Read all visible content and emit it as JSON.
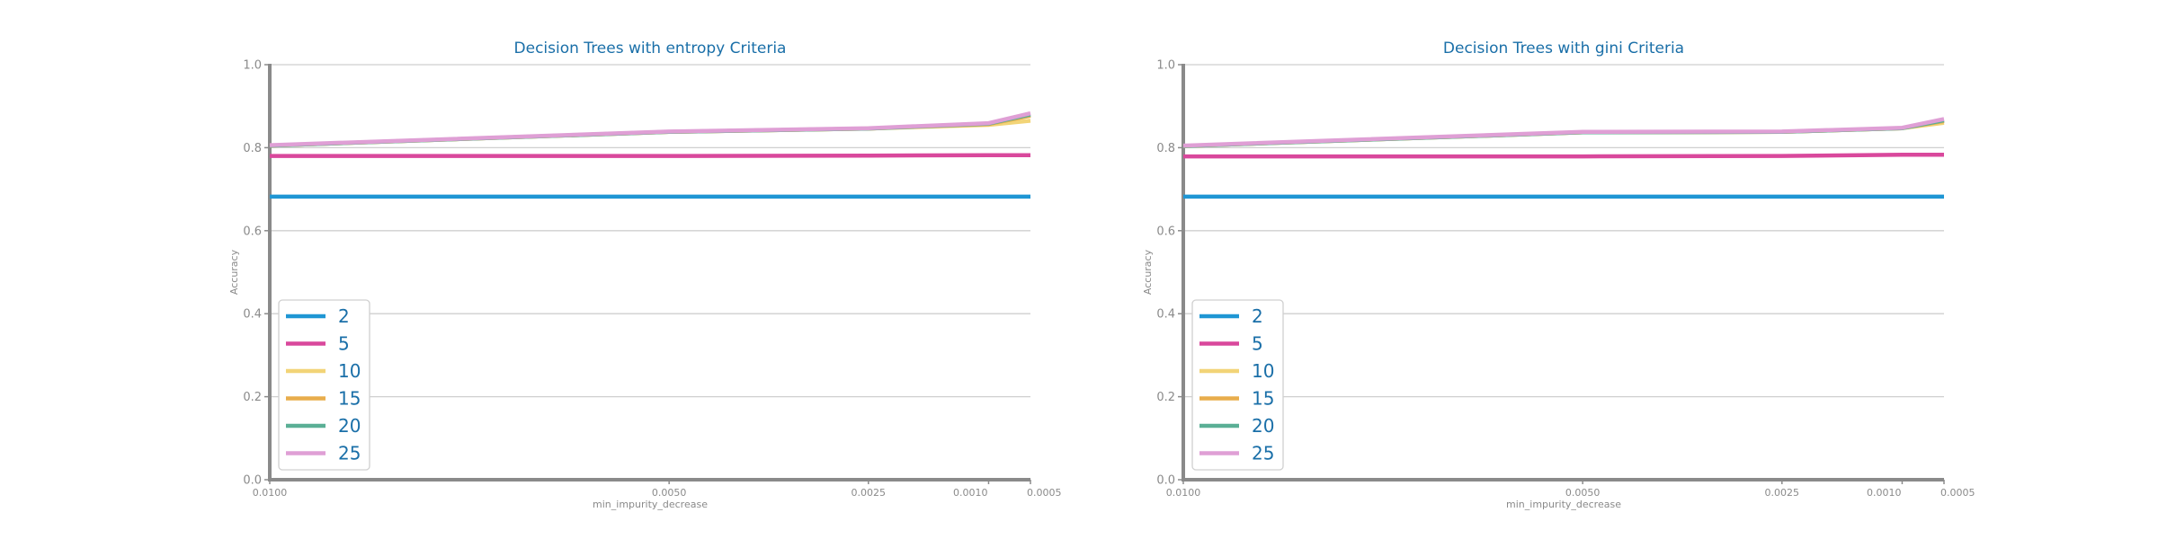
{
  "chart_data": [
    {
      "type": "line",
      "title": "Decision Trees with entropy Criteria",
      "xlabel": "min_impurity_decrease",
      "ylabel": "Accuracy",
      "ylim": [
        0,
        1
      ],
      "yticks": [
        "0.0",
        "0.2",
        "0.4",
        "0.6",
        "0.8",
        "1.0"
      ],
      "x": [
        0.01,
        0.005,
        0.0025,
        0.001,
        0.0005
      ],
      "xtick_labels": [
        "0.0100",
        "0.0050",
        "0.0025",
        "0.0010",
        "0.0005"
      ],
      "x_scale": "reversed",
      "grid": "horizontal",
      "legend_placement": "lower-left",
      "series": [
        {
          "name": "2",
          "color": "#1f96d4",
          "values": [
            0.682,
            0.682,
            0.682,
            0.682,
            0.682
          ]
        },
        {
          "name": "5",
          "color": "#d9489c",
          "values": [
            0.78,
            0.78,
            0.781,
            0.782,
            0.782
          ]
        },
        {
          "name": "10",
          "color": "#f2d477",
          "values": [
            0.805,
            0.838,
            0.846,
            0.855,
            0.865
          ]
        },
        {
          "name": "15",
          "color": "#e8ad4c",
          "values": [
            0.805,
            0.838,
            0.846,
            0.857,
            0.877
          ]
        },
        {
          "name": "20",
          "color": "#5aaf95",
          "values": [
            0.805,
            0.838,
            0.846,
            0.858,
            0.88
          ]
        },
        {
          "name": "25",
          "color": "#df9fd5",
          "values": [
            0.806,
            0.839,
            0.847,
            0.859,
            0.883
          ]
        }
      ]
    },
    {
      "type": "line",
      "title": "Decision Trees with gini Criteria",
      "xlabel": "min_impurity_decrease",
      "ylabel": "Accuracy",
      "ylim": [
        0,
        1
      ],
      "yticks": [
        "0.0",
        "0.2",
        "0.4",
        "0.6",
        "0.8",
        "1.0"
      ],
      "x": [
        0.01,
        0.005,
        0.0025,
        0.001,
        0.0005
      ],
      "xtick_labels": [
        "0.0100",
        "0.0050",
        "0.0025",
        "0.0010",
        "0.0005"
      ],
      "x_scale": "reversed",
      "grid": "horizontal",
      "legend_placement": "lower-left",
      "series": [
        {
          "name": "2",
          "color": "#1f96d4",
          "values": [
            0.682,
            0.682,
            0.682,
            0.682,
            0.682
          ]
        },
        {
          "name": "5",
          "color": "#d9489c",
          "values": [
            0.779,
            0.779,
            0.78,
            0.783,
            0.783
          ]
        },
        {
          "name": "10",
          "color": "#f2d477",
          "values": [
            0.804,
            0.837,
            0.838,
            0.847,
            0.86
          ]
        },
        {
          "name": "15",
          "color": "#e8ad4c",
          "values": [
            0.804,
            0.837,
            0.838,
            0.847,
            0.864
          ]
        },
        {
          "name": "20",
          "color": "#5aaf95",
          "values": [
            0.804,
            0.837,
            0.838,
            0.847,
            0.866
          ]
        },
        {
          "name": "25",
          "color": "#df9fd5",
          "values": [
            0.805,
            0.838,
            0.839,
            0.848,
            0.869
          ]
        }
      ]
    }
  ]
}
